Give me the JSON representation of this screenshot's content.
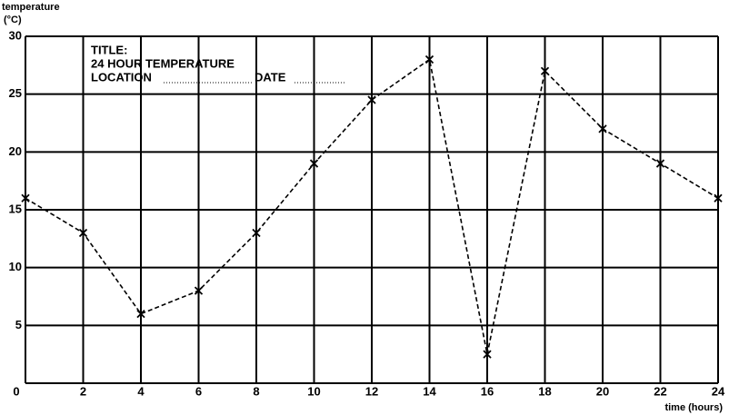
{
  "chart_data": {
    "type": "line",
    "ylabel": [
      "temperature",
      "(°C)"
    ],
    "xlabel": "time (hours)",
    "annotations": [
      "TITLE:",
      "24 HOUR TEMPERATURE",
      "LOCATION",
      "DATE"
    ],
    "x": [
      0,
      2,
      4,
      6,
      8,
      10,
      12,
      14,
      16,
      18,
      20,
      22,
      24
    ],
    "series": [
      {
        "color": "#000000",
        "values": [
          16,
          13,
          6,
          8,
          13,
          19,
          24.5,
          28,
          2.5,
          27,
          22,
          19,
          16
        ]
      }
    ],
    "xlim": [
      0,
      24
    ],
    "xticks": [
      0,
      2,
      4,
      6,
      8,
      10,
      12,
      14,
      16,
      18,
      20,
      22,
      24
    ],
    "ylim": [
      0,
      30
    ],
    "yticks": [
      0,
      5,
      10,
      15,
      20,
      25,
      30
    ],
    "grid": true
  }
}
